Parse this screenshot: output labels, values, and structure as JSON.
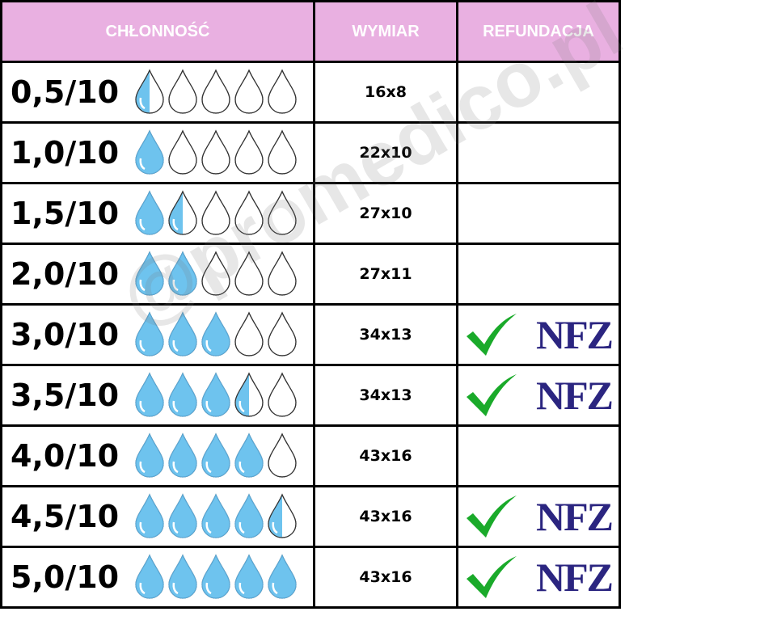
{
  "header": {
    "absorbency": "CHŁONNOŚĆ",
    "size": "WYMIAR",
    "refund": "REFUNDACJA"
  },
  "colors": {
    "header_bg": "#e9b0e1",
    "drop_fill": "#6ec3ee",
    "check": "#1aaa2a",
    "nfz": "#2b2580"
  },
  "rows": [
    {
      "absorbency": "0,5/10",
      "level": 0.5,
      "size": "16x8",
      "refund": false
    },
    {
      "absorbency": "1,0/10",
      "level": 1.0,
      "size": "22x10",
      "refund": false
    },
    {
      "absorbency": "1,5/10",
      "level": 1.5,
      "size": "27x10",
      "refund": false
    },
    {
      "absorbency": "2,0/10",
      "level": 2.0,
      "size": "27x11",
      "refund": false
    },
    {
      "absorbency": "3,0/10",
      "level": 3.0,
      "size": "34x13",
      "refund": true
    },
    {
      "absorbency": "3,5/10",
      "level": 3.5,
      "size": "34x13",
      "refund": true
    },
    {
      "absorbency": "4,0/10",
      "level": 4.0,
      "size": "43x16",
      "refund": false
    },
    {
      "absorbency": "4,5/10",
      "level": 4.5,
      "size": "43x16",
      "refund": true
    },
    {
      "absorbency": "5,0/10",
      "level": 5.0,
      "size": "43x16",
      "refund": true
    }
  ],
  "nfz_logo": "NFZ",
  "watermark": "@promedico.pl"
}
